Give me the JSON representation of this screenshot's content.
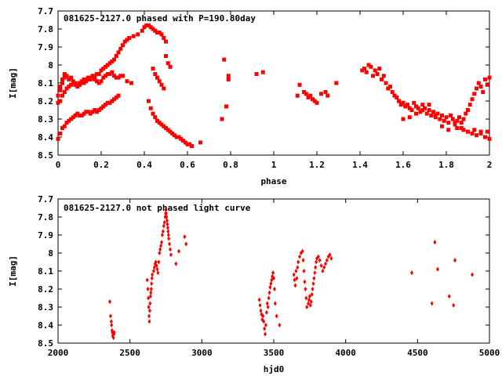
{
  "chart_data": [
    {
      "type": "scatter",
      "title": "081625-2127.0 phased with P=190.80day",
      "xlabel": "phase",
      "ylabel": "I[mag]",
      "xlim": [
        0,
        2
      ],
      "ylim": [
        8.5,
        7.7
      ],
      "y_inverted": true,
      "grid": false,
      "xticks": [
        0,
        0.2,
        0.4,
        0.6,
        0.8,
        1,
        1.2,
        1.4,
        1.6,
        1.8,
        2
      ],
      "xtick_labels": [
        "0",
        "0.2",
        "0.4",
        "0.6",
        "0.8",
        "1",
        "1.2",
        "1.4",
        "1.6",
        "1.8",
        "2"
      ],
      "yticks": [
        7.7,
        7.8,
        7.9,
        8.0,
        8.1,
        8.2,
        8.3,
        8.4,
        8.5
      ],
      "ytick_labels": [
        "7.7",
        "7.8",
        "7.9",
        "8",
        "8.1",
        "8.2",
        "8.3",
        "8.4",
        "8.5"
      ],
      "marker_color": "#ff0000",
      "marker": "plus",
      "series": [
        {
          "x": [
            0.0,
            0.01,
            0.01,
            0.02,
            0.02,
            0.03,
            0.03,
            0.04,
            0.05,
            0.06,
            0.07,
            0.08,
            0.09,
            0.1,
            0.11,
            0.12,
            0.13,
            0.14,
            0.15,
            0.16,
            0.17,
            0.18,
            0.19,
            0.2,
            0.21,
            0.22,
            0.23,
            0.24,
            0.25,
            0.26,
            0.27,
            0.28,
            0.29,
            0.3,
            0.31,
            0.32,
            0.33,
            0.35,
            0.37,
            0.39,
            0.4,
            0.41,
            0.42,
            0.43,
            0.44,
            0.45,
            0.46,
            0.47,
            0.48,
            0.49,
            0.5,
            0.0,
            0.01,
            0.02,
            0.03,
            0.04,
            0.05,
            0.06,
            0.07,
            0.08,
            0.09,
            0.1,
            0.11,
            0.12,
            0.13,
            0.14,
            0.15,
            0.16,
            0.17,
            0.18,
            0.19,
            0.2,
            0.21,
            0.22,
            0.23,
            0.24,
            0.25,
            0.26,
            0.27,
            0.28,
            0.29,
            0.3,
            0.32,
            0.34,
            0.0,
            0.01,
            0.02,
            0.03,
            0.04,
            0.05,
            0.06,
            0.07,
            0.08,
            0.09,
            0.1,
            0.11,
            0.12,
            0.13,
            0.14,
            0.15,
            0.16,
            0.17,
            0.18,
            0.19,
            0.2,
            0.21,
            0.22,
            0.23,
            0.24,
            0.25,
            0.26,
            0.27,
            0.28,
            0.42,
            0.43,
            0.44,
            0.45,
            0.46,
            0.47,
            0.48,
            0.49,
            0.5,
            0.51,
            0.52,
            0.53,
            0.54,
            0.55,
            0.56,
            0.57,
            0.58,
            0.59,
            0.6,
            0.61,
            0.62,
            0.66,
            0.44,
            0.45,
            0.46,
            0.47,
            0.48,
            0.49,
            0.5,
            0.51,
            0.52,
            0.76,
            0.77,
            0.78,
            0.79,
            0.79,
            0.92,
            0.95,
            1.11,
            1.12,
            1.14,
            1.15,
            1.16,
            1.17,
            1.18,
            1.19,
            1.2,
            1.22,
            1.24,
            1.25,
            1.29,
            1.41,
            1.42,
            1.43,
            1.44,
            1.45,
            1.46,
            1.47,
            1.48,
            1.49,
            1.5,
            1.51,
            1.52,
            1.53,
            1.54,
            1.55,
            1.56,
            1.57,
            1.58,
            1.59,
            1.6,
            1.61,
            1.62,
            1.63,
            1.64,
            1.65,
            1.66,
            1.67,
            1.68,
            1.69,
            1.7,
            1.71,
            1.72,
            1.73,
            1.74,
            1.75,
            1.76,
            1.77,
            1.78,
            1.79,
            1.8,
            1.81,
            1.82,
            1.83,
            1.84,
            1.85,
            1.86,
            1.87,
            1.88,
            1.89,
            1.9,
            1.91,
            1.92,
            1.93,
            1.94,
            1.95,
            1.96,
            1.97,
            1.98,
            1.99,
            2.0,
            1.6,
            1.63,
            1.66,
            1.69,
            1.72,
            1.75,
            1.78,
            1.81,
            1.84,
            1.87,
            1.9,
            1.93,
            1.96,
            1.99,
            1.85,
            1.88,
            1.9,
            1.92,
            1.94,
            1.96,
            1.98,
            2.0
          ],
          "y": [
            8.17,
            8.14,
            8.12,
            8.1,
            8.08,
            8.07,
            8.05,
            8.06,
            8.08,
            8.07,
            8.09,
            8.1,
            8.11,
            8.1,
            8.09,
            8.08,
            8.08,
            8.07,
            8.07,
            8.06,
            8.06,
            8.05,
            8.05,
            8.03,
            8.02,
            8.01,
            8.0,
            7.99,
            7.98,
            7.97,
            7.95,
            7.93,
            7.91,
            7.89,
            7.87,
            7.86,
            7.85,
            7.84,
            7.83,
            7.81,
            7.79,
            7.78,
            7.78,
            7.79,
            7.8,
            7.81,
            7.82,
            7.82,
            7.83,
            7.85,
            7.87,
            8.21,
            8.2,
            8.17,
            8.15,
            8.13,
            8.12,
            8.11,
            8.1,
            8.11,
            8.12,
            8.11,
            8.1,
            8.1,
            8.09,
            8.08,
            8.08,
            8.07,
            8.08,
            8.09,
            8.1,
            8.09,
            8.07,
            8.06,
            8.05,
            8.05,
            8.04,
            8.06,
            8.07,
            8.07,
            8.06,
            8.06,
            8.09,
            8.1,
            8.41,
            8.38,
            8.35,
            8.34,
            8.32,
            8.31,
            8.3,
            8.29,
            8.28,
            8.27,
            8.28,
            8.28,
            8.27,
            8.26,
            8.26,
            8.27,
            8.26,
            8.25,
            8.26,
            8.25,
            8.24,
            8.23,
            8.22,
            8.21,
            8.21,
            8.2,
            8.19,
            8.18,
            8.17,
            8.2,
            8.24,
            8.27,
            8.29,
            8.31,
            8.32,
            8.33,
            8.34,
            8.35,
            8.36,
            8.37,
            8.38,
            8.39,
            8.4,
            8.4,
            8.41,
            8.42,
            8.43,
            8.44,
            8.44,
            8.45,
            8.43,
            8.02,
            8.05,
            8.07,
            8.09,
            8.11,
            8.13,
            7.95,
            7.99,
            8.01,
            8.3,
            7.97,
            8.23,
            8.06,
            8.08,
            8.05,
            8.04,
            8.17,
            8.11,
            8.15,
            8.16,
            8.18,
            8.17,
            8.19,
            8.2,
            8.21,
            8.16,
            8.15,
            8.17,
            8.1,
            8.03,
            8.02,
            8.04,
            8.0,
            8.01,
            8.06,
            8.03,
            8.05,
            8.02,
            8.08,
            8.06,
            8.1,
            8.13,
            8.12,
            8.15,
            8.17,
            8.18,
            8.2,
            8.22,
            8.21,
            8.23,
            8.22,
            8.24,
            8.25,
            8.21,
            8.23,
            8.24,
            8.26,
            8.22,
            8.24,
            8.27,
            8.25,
            8.28,
            8.26,
            8.29,
            8.27,
            8.3,
            8.28,
            8.31,
            8.29,
            8.32,
            8.28,
            8.3,
            8.33,
            8.31,
            8.29,
            8.32,
            8.3,
            8.27,
            8.25,
            8.22,
            8.19,
            8.16,
            8.13,
            8.1,
            8.12,
            8.15,
            8.08,
            8.11,
            8.07,
            8.3,
            8.29,
            8.27,
            8.25,
            8.22,
            8.28,
            8.34,
            8.36,
            8.32,
            8.35,
            8.37,
            8.36,
            8.38,
            8.37,
            8.35,
            8.36,
            8.37,
            8.38,
            8.39,
            8.37,
            8.4,
            8.41
          ]
        }
      ]
    },
    {
      "type": "scatter",
      "title": "081625-2127.0 not phased light curve",
      "xlabel": "hjd0",
      "ylabel": "I[mag]",
      "xlim": [
        2000,
        5000
      ],
      "ylim": [
        8.5,
        7.7
      ],
      "y_inverted": true,
      "grid": false,
      "xticks": [
        2000,
        2500,
        3000,
        3500,
        4000,
        4500,
        5000
      ],
      "xtick_labels": [
        "2000",
        "2500",
        "3000",
        "3500",
        "4000",
        "4500",
        "5000"
      ],
      "yticks": [
        7.7,
        7.8,
        7.9,
        8.0,
        8.1,
        8.2,
        8.3,
        8.4,
        8.5
      ],
      "ytick_labels": [
        "7.7",
        "7.8",
        "7.9",
        "8",
        "8.1",
        "8.2",
        "8.3",
        "8.4",
        "8.5"
      ],
      "marker_color": "#ff0000",
      "marker": "diamond",
      "series": [
        {
          "x": [
            2360,
            2365,
            2370,
            2372,
            2375,
            2378,
            2380,
            2383,
            2385,
            2388,
            2390,
            2620,
            2625,
            2628,
            2630,
            2633,
            2635,
            2638,
            2640,
            2643,
            2645,
            2648,
            2650,
            2653,
            2655,
            2665,
            2670,
            2675,
            2680,
            2685,
            2690,
            2695,
            2700,
            2705,
            2710,
            2715,
            2720,
            2725,
            2730,
            2735,
            2740,
            2745,
            2748,
            2750,
            2752,
            2755,
            2758,
            2760,
            2763,
            2765,
            2768,
            2770,
            2775,
            2780,
            2785,
            2820,
            2840,
            2880,
            2890,
            3400,
            3405,
            3410,
            3415,
            3420,
            3425,
            3430,
            3435,
            3440,
            3445,
            3450,
            3455,
            3460,
            3465,
            3470,
            3475,
            3480,
            3485,
            3490,
            3495,
            3500,
            3505,
            3510,
            3520,
            3540,
            3640,
            3645,
            3650,
            3655,
            3660,
            3665,
            3670,
            3680,
            3690,
            3700,
            3705,
            3710,
            3715,
            3720,
            3725,
            3730,
            3740,
            3745,
            3750,
            3755,
            3760,
            3765,
            3770,
            3775,
            3780,
            3785,
            3790,
            3795,
            3800,
            3810,
            3820,
            3830,
            3840,
            3850,
            3860,
            3870,
            3880,
            3890,
            3900,
            4460,
            4600,
            4620,
            4640,
            4720,
            4750,
            4760,
            4880
          ],
          "y": [
            8.27,
            8.35,
            8.38,
            8.4,
            8.43,
            8.44,
            8.46,
            8.45,
            8.47,
            8.45,
            8.44,
            8.15,
            8.2,
            8.25,
            8.3,
            8.35,
            8.38,
            8.32,
            8.28,
            8.24,
            8.22,
            8.2,
            8.17,
            8.14,
            8.12,
            8.1,
            8.08,
            8.06,
            8.05,
            8.07,
            8.09,
            8.11,
            8.05,
            8.0,
            7.98,
            7.96,
            7.94,
            7.9,
            7.88,
            7.85,
            7.83,
            7.8,
            7.78,
            7.76,
            7.78,
            7.8,
            7.82,
            7.84,
            7.86,
            7.88,
            7.9,
            7.92,
            7.95,
            7.98,
            8.01,
            8.06,
            7.99,
            7.91,
            7.95,
            8.26,
            8.29,
            8.32,
            8.34,
            8.37,
            8.35,
            8.38,
            8.42,
            8.45,
            8.4,
            8.33,
            8.28,
            8.3,
            8.25,
            8.22,
            8.19,
            8.17,
            8.15,
            8.13,
            8.11,
            8.14,
            8.2,
            8.28,
            8.35,
            8.4,
            8.12,
            8.15,
            8.18,
            8.1,
            8.14,
            8.08,
            8.05,
            8.02,
            8.0,
            7.99,
            8.04,
            8.1,
            8.16,
            8.2,
            8.25,
            8.3,
            8.28,
            8.26,
            8.24,
            8.29,
            8.27,
            8.23,
            8.2,
            8.17,
            8.14,
            8.11,
            8.08,
            8.05,
            8.03,
            8.02,
            8.04,
            8.07,
            8.1,
            8.08,
            8.06,
            8.04,
            8.02,
            8.01,
            8.03,
            8.11,
            8.28,
            7.94,
            8.09,
            8.24,
            8.29,
            8.04,
            8.12
          ]
        }
      ]
    }
  ]
}
